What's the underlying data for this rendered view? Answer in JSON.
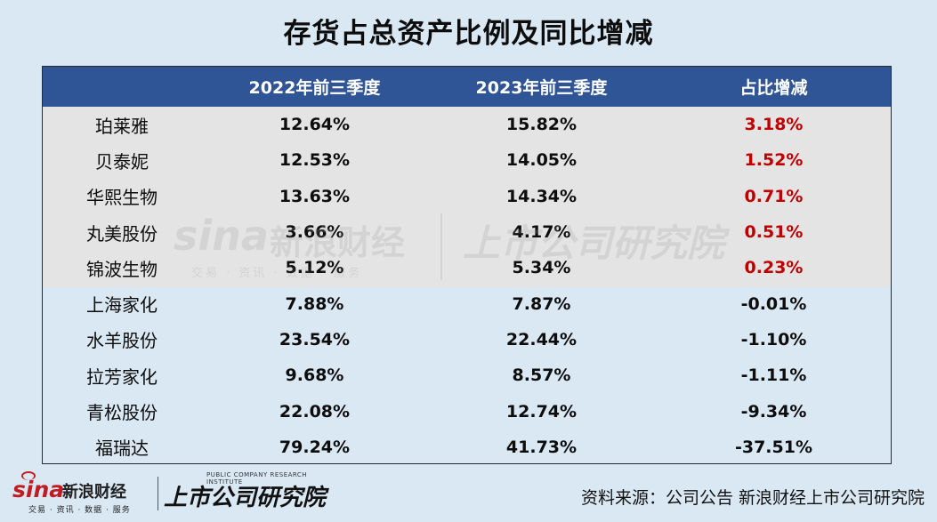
{
  "title": "存货占总资产比例及同比增减",
  "table": {
    "headers": [
      "",
      "2022年前三季度",
      "2023年前三季度",
      "占比增减"
    ],
    "rows": [
      {
        "company": "珀莱雅",
        "y2022": "12.64%",
        "y2023": "15.82%",
        "change": "3.18%",
        "positive": true
      },
      {
        "company": "贝泰妮",
        "y2022": "12.53%",
        "y2023": "14.05%",
        "change": "1.52%",
        "positive": true
      },
      {
        "company": "华熙生物",
        "y2022": "13.63%",
        "y2023": "14.34%",
        "change": "0.71%",
        "positive": true
      },
      {
        "company": "丸美股份",
        "y2022": "3.66%",
        "y2023": "4.17%",
        "change": "0.51%",
        "positive": true
      },
      {
        "company": "锦波生物",
        "y2022": "5.12%",
        "y2023": "5.34%",
        "change": "0.23%",
        "positive": true
      },
      {
        "company": "上海家化",
        "y2022": "7.88%",
        "y2023": "7.87%",
        "change": "-0.01%",
        "positive": false
      },
      {
        "company": "水羊股份",
        "y2022": "23.54%",
        "y2023": "22.44%",
        "change": "-1.10%",
        "positive": false
      },
      {
        "company": "拉芳家化",
        "y2022": "9.68%",
        "y2023": "8.57%",
        "change": "-1.11%",
        "positive": false
      },
      {
        "company": "青松股份",
        "y2022": "22.08%",
        "y2023": "12.74%",
        "change": "-9.34%",
        "positive": false
      },
      {
        "company": "福瑞达",
        "y2022": "79.24%",
        "y2023": "41.73%",
        "change": "-37.51%",
        "positive": false
      }
    ]
  },
  "watermark": {
    "brand": "sina",
    "name": "新浪财经",
    "services": "交易 · 资讯 · 数据 · 服务",
    "institute": "上市公司研究院"
  },
  "footer": {
    "logo_brand": "sina",
    "logo_name": "新浪财经",
    "logo_services": "交易 · 资讯 · 数据 · 服务",
    "logo_en": "PUBLIC COMPANY RESEARCH INSTITUTE",
    "logo_institute": "上市公司研究院",
    "source": "资料来源：公司公告 新浪财经上市公司研究院"
  },
  "colors": {
    "header_bg": "#2f5597",
    "positive_text": "#c00000",
    "page_bg": "#dae8f4",
    "band_gray": "#e4e4e4",
    "sina_red": "#c21b21"
  }
}
